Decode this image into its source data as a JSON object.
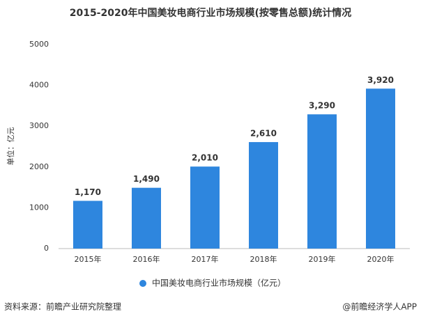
{
  "chart_data": {
    "type": "bar",
    "title": "2015-2020年中国美妆电商行业市场规模(按零售总额)统计情况",
    "y_label": "单位：亿元",
    "categories": [
      "2015年",
      "2016年",
      "2017年",
      "2018年",
      "2019年",
      "2020年"
    ],
    "series": [
      {
        "name": "中国美妆电商行业市场规模（亿元）",
        "color": "#2e86de",
        "values": [
          1170,
          1490,
          2010,
          2610,
          3290,
          3920
        ],
        "value_labels": [
          "1,170",
          "1,490",
          "2,010",
          "2,610",
          "3,290",
          "3,920"
        ]
      }
    ],
    "ylim": [
      0,
      5000
    ],
    "yticks": [
      0,
      1000,
      2000,
      3000,
      4000,
      5000
    ],
    "grid": false,
    "legend": "bottom",
    "source": "资料来源：前瞻产业研究院整理",
    "credit": "@前瞻经济学人APP"
  }
}
